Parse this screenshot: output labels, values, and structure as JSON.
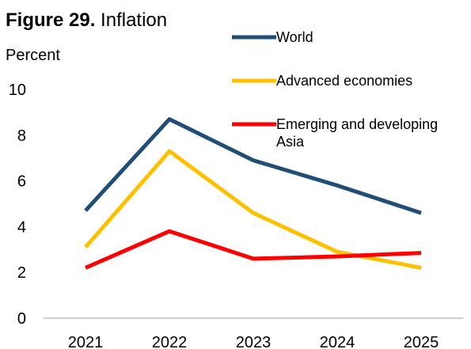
{
  "title_prefix": "Figure 29.",
  "title_text": "Inflation",
  "chart_data": {
    "type": "line",
    "title": "Figure 29. Inflation",
    "ylabel": "Percent",
    "xlabel": "",
    "x": [
      "2021",
      "2022",
      "2023",
      "2024",
      "2025"
    ],
    "ylim": [
      0,
      10
    ],
    "yticks": [
      0,
      2,
      4,
      6,
      8,
      10
    ],
    "grid": false,
    "legend_position": "top-right",
    "series": [
      {
        "name": "World",
        "color": "#1f4e79",
        "values": [
          4.7,
          8.7,
          6.9,
          5.8,
          4.6
        ]
      },
      {
        "name": "Advanced economies",
        "color": "#ffc000",
        "values": [
          3.1,
          7.3,
          4.6,
          2.9,
          2.2
        ]
      },
      {
        "name": "Emerging and developing Asia",
        "name_lines": [
          "Emerging and developing",
          "Asia"
        ],
        "color": "#ff0000",
        "values": [
          2.2,
          3.8,
          2.6,
          2.7,
          2.85
        ]
      }
    ]
  }
}
